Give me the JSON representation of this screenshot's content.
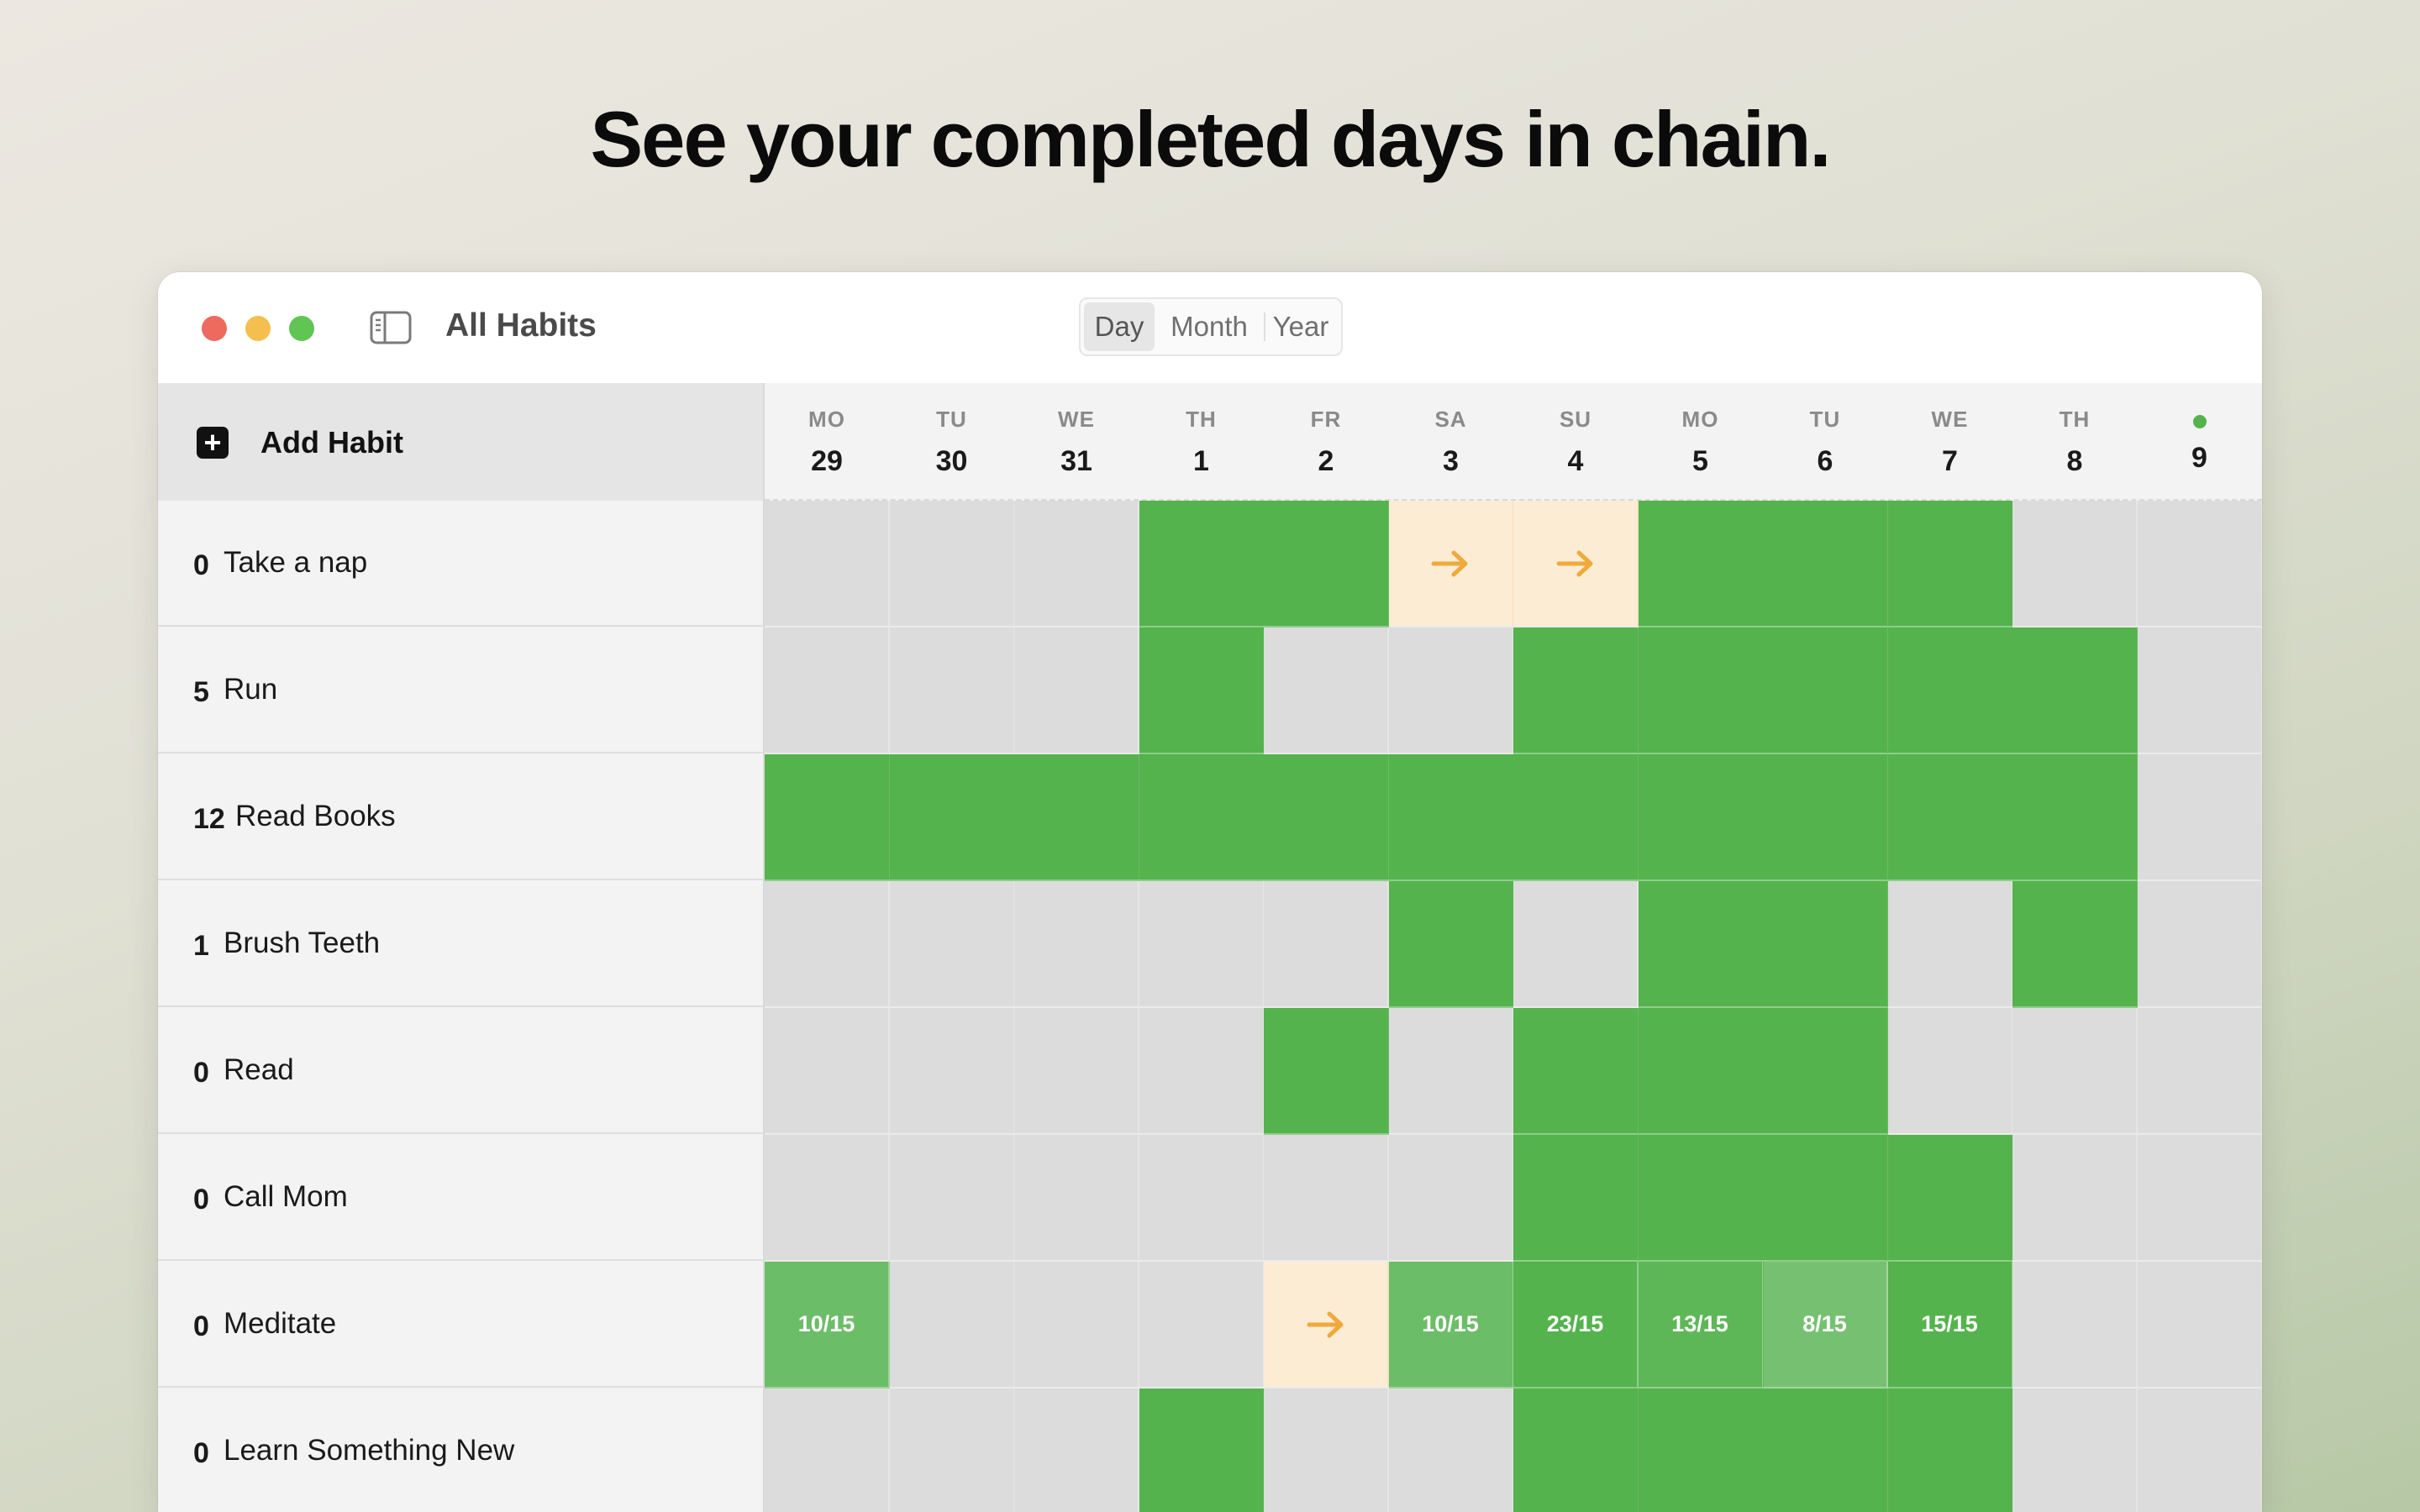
{
  "headline": "See your completed days in chain.",
  "window": {
    "title": "All Habits",
    "view_tabs": [
      {
        "label": "Day",
        "selected": true
      },
      {
        "label": "Month",
        "selected": false
      },
      {
        "label": "Year",
        "selected": false
      }
    ]
  },
  "sidebar": {
    "add_label": "Add Habit"
  },
  "days": [
    {
      "dow": "MO",
      "num": "29"
    },
    {
      "dow": "TU",
      "num": "30"
    },
    {
      "dow": "WE",
      "num": "31"
    },
    {
      "dow": "TH",
      "num": "1"
    },
    {
      "dow": "FR",
      "num": "2"
    },
    {
      "dow": "SA",
      "num": "3"
    },
    {
      "dow": "SU",
      "num": "4"
    },
    {
      "dow": "MO",
      "num": "5"
    },
    {
      "dow": "TU",
      "num": "6"
    },
    {
      "dow": "WE",
      "num": "7"
    },
    {
      "dow": "TH",
      "num": "8"
    },
    {
      "dow": "",
      "num": "9",
      "today": true
    }
  ],
  "habits": [
    {
      "count": "0",
      "name": "Take a nap",
      "cells": [
        "e",
        "e",
        "e",
        "d",
        "d",
        "s",
        "s",
        "d",
        "d",
        "d",
        "e",
        "e"
      ]
    },
    {
      "count": "5",
      "name": "Run",
      "cells": [
        "e",
        "e",
        "e",
        "d",
        "e",
        "e",
        "d",
        "d",
        "d",
        "d",
        "d",
        "e"
      ]
    },
    {
      "count": "12",
      "name": "Read Books",
      "cells": [
        "d",
        "d",
        "d",
        "d",
        "d",
        "d",
        "d",
        "d",
        "d",
        "d",
        "d",
        "e"
      ]
    },
    {
      "count": "1",
      "name": "Brush Teeth",
      "cells": [
        "e",
        "e",
        "e",
        "e",
        "e",
        "d",
        "e",
        "d",
        "d",
        "e",
        "d",
        "e"
      ]
    },
    {
      "count": "0",
      "name": "Read",
      "cells": [
        "e",
        "e",
        "e",
        "e",
        "d",
        "e",
        "d",
        "d",
        "d",
        "e",
        "e",
        "e"
      ]
    },
    {
      "count": "0",
      "name": "Call Mom",
      "cells": [
        "e",
        "e",
        "e",
        "e",
        "e",
        "e",
        "d",
        "d",
        "d",
        "d",
        "e",
        "e"
      ]
    },
    {
      "count": "0",
      "name": "Meditate",
      "cells": [
        {
          "label": "10/15",
          "level": 0.67
        },
        "e",
        "e",
        "e",
        "s",
        {
          "label": "10/15",
          "level": 0.67
        },
        {
          "label": "23/15",
          "level": 1
        },
        {
          "label": "13/15",
          "level": 0.87
        },
        {
          "label": "8/15",
          "level": 0.53
        },
        {
          "label": "15/15",
          "level": 1
        },
        "e",
        "e"
      ]
    },
    {
      "count": "0",
      "name": "Learn Something New",
      "cells": [
        "e",
        "e",
        "e",
        "d",
        "e",
        "e",
        "d",
        "d",
        "d",
        "d",
        "e",
        "e"
      ]
    }
  ],
  "colors": {
    "done": "#54b34d",
    "empty": "#dcdcdc",
    "skip": "#fcecd3",
    "arrow": "#efa93c",
    "today_dot": "#54b34d"
  },
  "icons": {
    "add": "plus-square-icon",
    "sidebar": "sidebar-toggle-icon",
    "skip": "arrow-right-icon"
  }
}
